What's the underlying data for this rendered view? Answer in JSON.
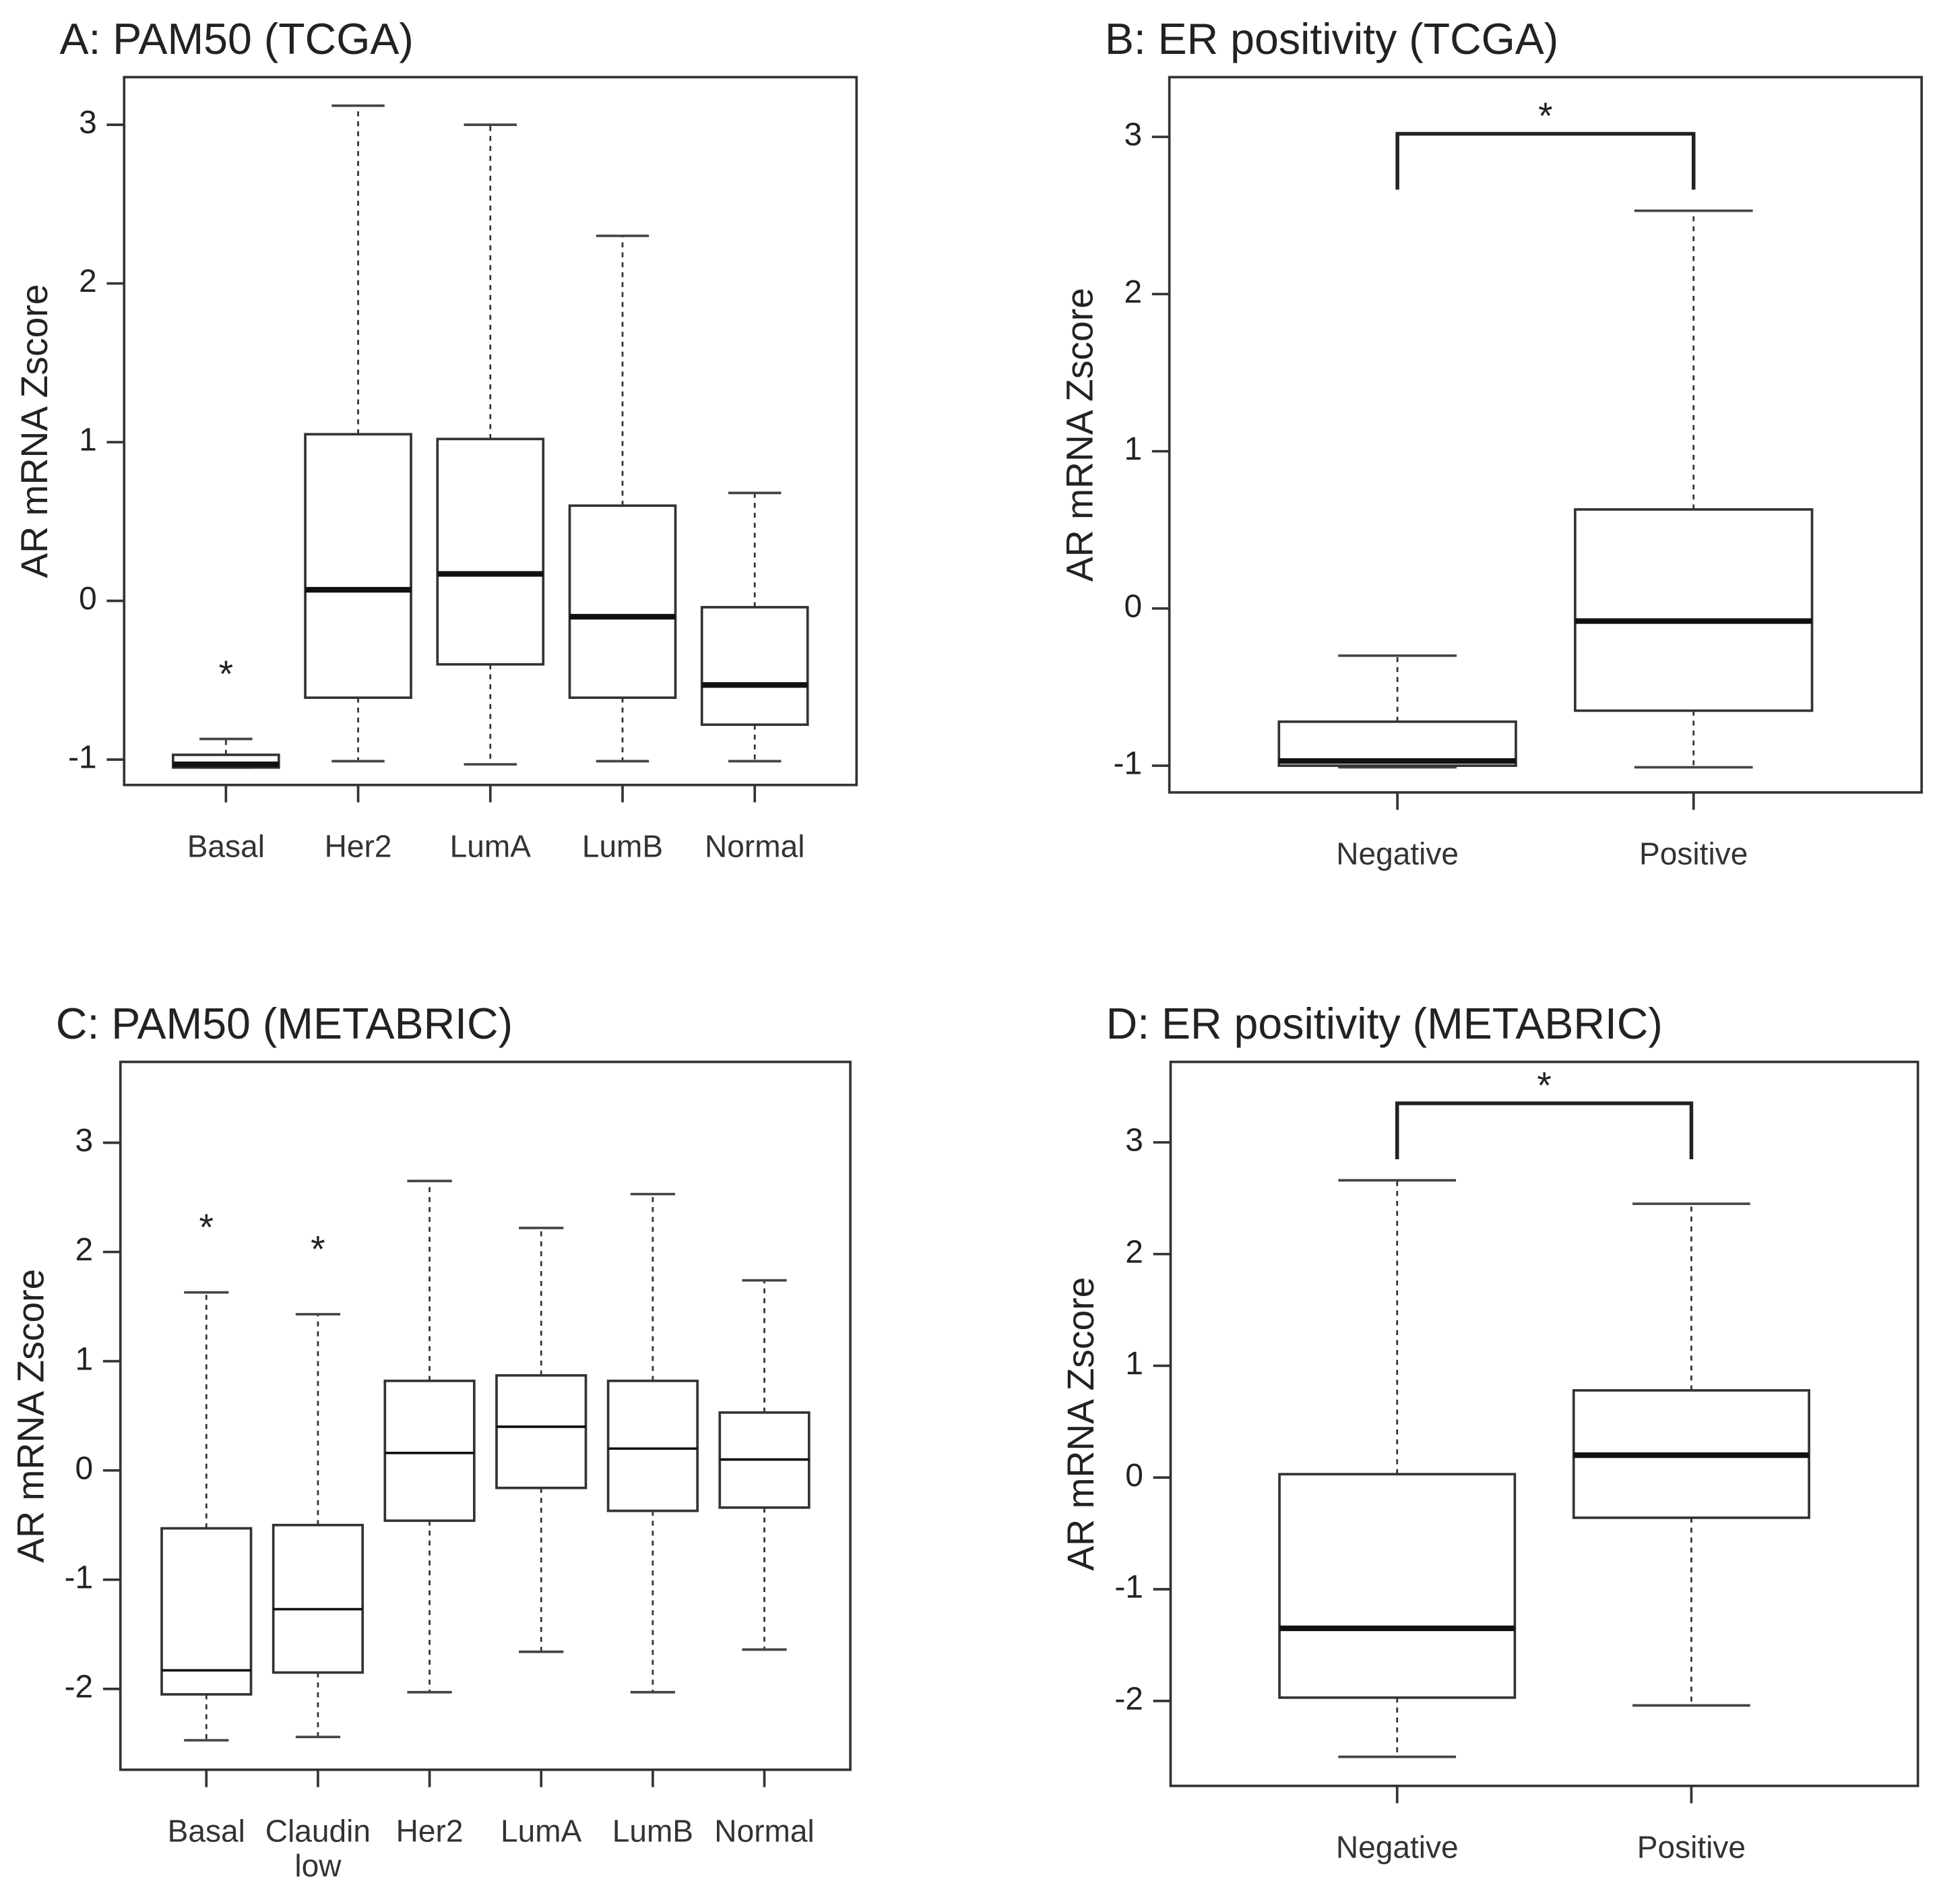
{
  "chart_data": [
    {
      "type": "box",
      "title": "A: PAM50 (TCGA)",
      "y_label": "AR mRNA Zscore",
      "categories": [
        "Basal",
        "Her2",
        "LumA",
        "LumB",
        "Normal"
      ],
      "boxes": [
        {
          "whisker_low": -1.05,
          "q1": -1.05,
          "median": -1.03,
          "q3": -0.97,
          "whisker_high": -0.87
        },
        {
          "whisker_low": -1.01,
          "q1": -0.61,
          "median": 0.07,
          "q3": 1.05,
          "whisker_high": 3.12
        },
        {
          "whisker_low": -1.03,
          "q1": -0.4,
          "median": 0.17,
          "q3": 1.02,
          "whisker_high": 3.0
        },
        {
          "whisker_low": -1.01,
          "q1": -0.61,
          "median": -0.1,
          "q3": 0.6,
          "whisker_high": 2.3
        },
        {
          "whisker_low": -1.01,
          "q1": -0.78,
          "median": -0.53,
          "q3": -0.04,
          "whisker_high": 0.68
        }
      ],
      "ylim": [
        -1.16,
        3.3
      ],
      "yticks": [
        -1,
        0,
        1,
        2,
        3
      ],
      "median_style": "bold",
      "annotations": [
        {
          "text": "*",
          "category": "Basal"
        }
      ]
    },
    {
      "type": "box",
      "title": "B: ER positivity (TCGA)",
      "y_label": "AR mRNA Zscore",
      "categories": [
        "Negative",
        "Positive"
      ],
      "boxes": [
        {
          "whisker_low": -1.01,
          "q1": -1.0,
          "median": -0.97,
          "q3": -0.72,
          "whisker_high": -0.3
        },
        {
          "whisker_low": -1.01,
          "q1": -0.65,
          "median": -0.08,
          "q3": 0.63,
          "whisker_high": 2.53
        }
      ],
      "ylim": [
        -1.17,
        3.38
      ],
      "yticks": [
        -1,
        0,
        1,
        2,
        3
      ],
      "median_style": "bold",
      "brackets": [
        {
          "text": "*",
          "from": "Negative",
          "to": "Positive"
        }
      ]
    },
    {
      "type": "box",
      "title": "C: PAM50 (METABRIC)",
      "y_label": "AR mRNA Zscore",
      "categories": [
        "Basal",
        "Claudin low",
        "Her2",
        "LumA",
        "LumB",
        "Normal"
      ],
      "boxes": [
        {
          "whisker_low": -2.47,
          "q1": -2.05,
          "median": -1.83,
          "q3": -0.53,
          "whisker_high": 1.63
        },
        {
          "whisker_low": -2.44,
          "q1": -1.85,
          "median": -1.27,
          "q3": -0.5,
          "whisker_high": 1.43
        },
        {
          "whisker_low": -2.03,
          "q1": -0.46,
          "median": 0.16,
          "q3": 0.82,
          "whisker_high": 2.65
        },
        {
          "whisker_low": -1.66,
          "q1": -0.16,
          "median": 0.4,
          "q3": 0.87,
          "whisker_high": 2.22
        },
        {
          "whisker_low": -2.03,
          "q1": -0.37,
          "median": 0.2,
          "q3": 0.82,
          "whisker_high": 2.53
        },
        {
          "whisker_low": -1.64,
          "q1": -0.34,
          "median": 0.1,
          "q3": 0.53,
          "whisker_high": 1.74
        }
      ],
      "ylim": [
        -2.74,
        3.74
      ],
      "yticks": [
        -2,
        -1,
        0,
        1,
        2,
        3
      ],
      "median_style": "thin",
      "annotations": [
        {
          "text": "*",
          "category": "Basal"
        },
        {
          "text": "*",
          "category": "Claudin low"
        }
      ]
    },
    {
      "type": "box",
      "title": "D: ER positivity (METABRIC)",
      "y_label": "AR mRNA Zscore",
      "categories": [
        "Negative",
        "Positive"
      ],
      "boxes": [
        {
          "whisker_low": -2.5,
          "q1": -1.97,
          "median": -1.35,
          "q3": 0.03,
          "whisker_high": 2.66
        },
        {
          "whisker_low": -2.04,
          "q1": -0.36,
          "median": 0.2,
          "q3": 0.78,
          "whisker_high": 2.45
        }
      ],
      "ylim": [
        -2.76,
        3.72
      ],
      "yticks": [
        -2,
        -1,
        0,
        1,
        2,
        3
      ],
      "median_style": "bold",
      "brackets": [
        {
          "text": "*",
          "from": "Negative",
          "to": "Positive"
        }
      ]
    }
  ]
}
